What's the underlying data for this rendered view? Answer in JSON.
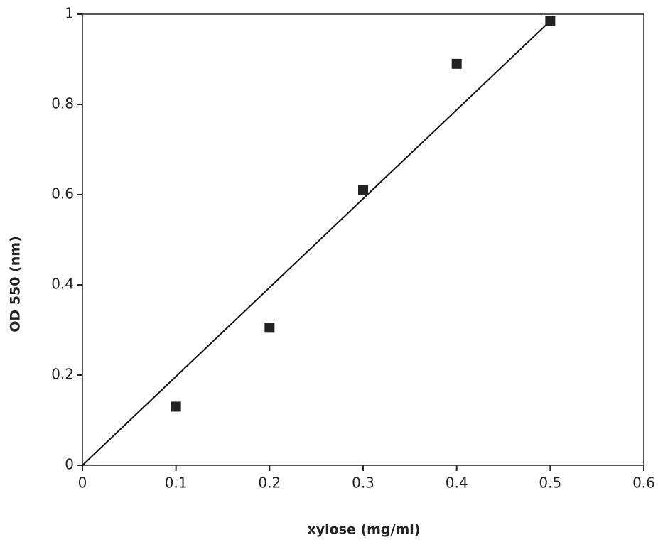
{
  "chart_data": {
    "type": "scatter",
    "xlabel": "xylose (mg/ml)",
    "ylabel": "OD 550 (nm)",
    "xlim": [
      0,
      0.6
    ],
    "ylim": [
      0,
      1
    ],
    "xticks": [
      0,
      0.1,
      0.2,
      0.3,
      0.4,
      0.5,
      0.6
    ],
    "yticks": [
      0,
      0.2,
      0.4,
      0.6,
      0.8,
      1
    ],
    "series": [
      {
        "color": "#222222",
        "x": [
          0.1,
          0.2,
          0.3,
          0.4,
          0.5
        ],
        "values": [
          0.13,
          0.305,
          0.61,
          0.89,
          0.985
        ]
      }
    ],
    "trend_line": {
      "color": "#111111",
      "x": [
        0,
        0.5
      ],
      "values": [
        0,
        0.985
      ]
    }
  }
}
